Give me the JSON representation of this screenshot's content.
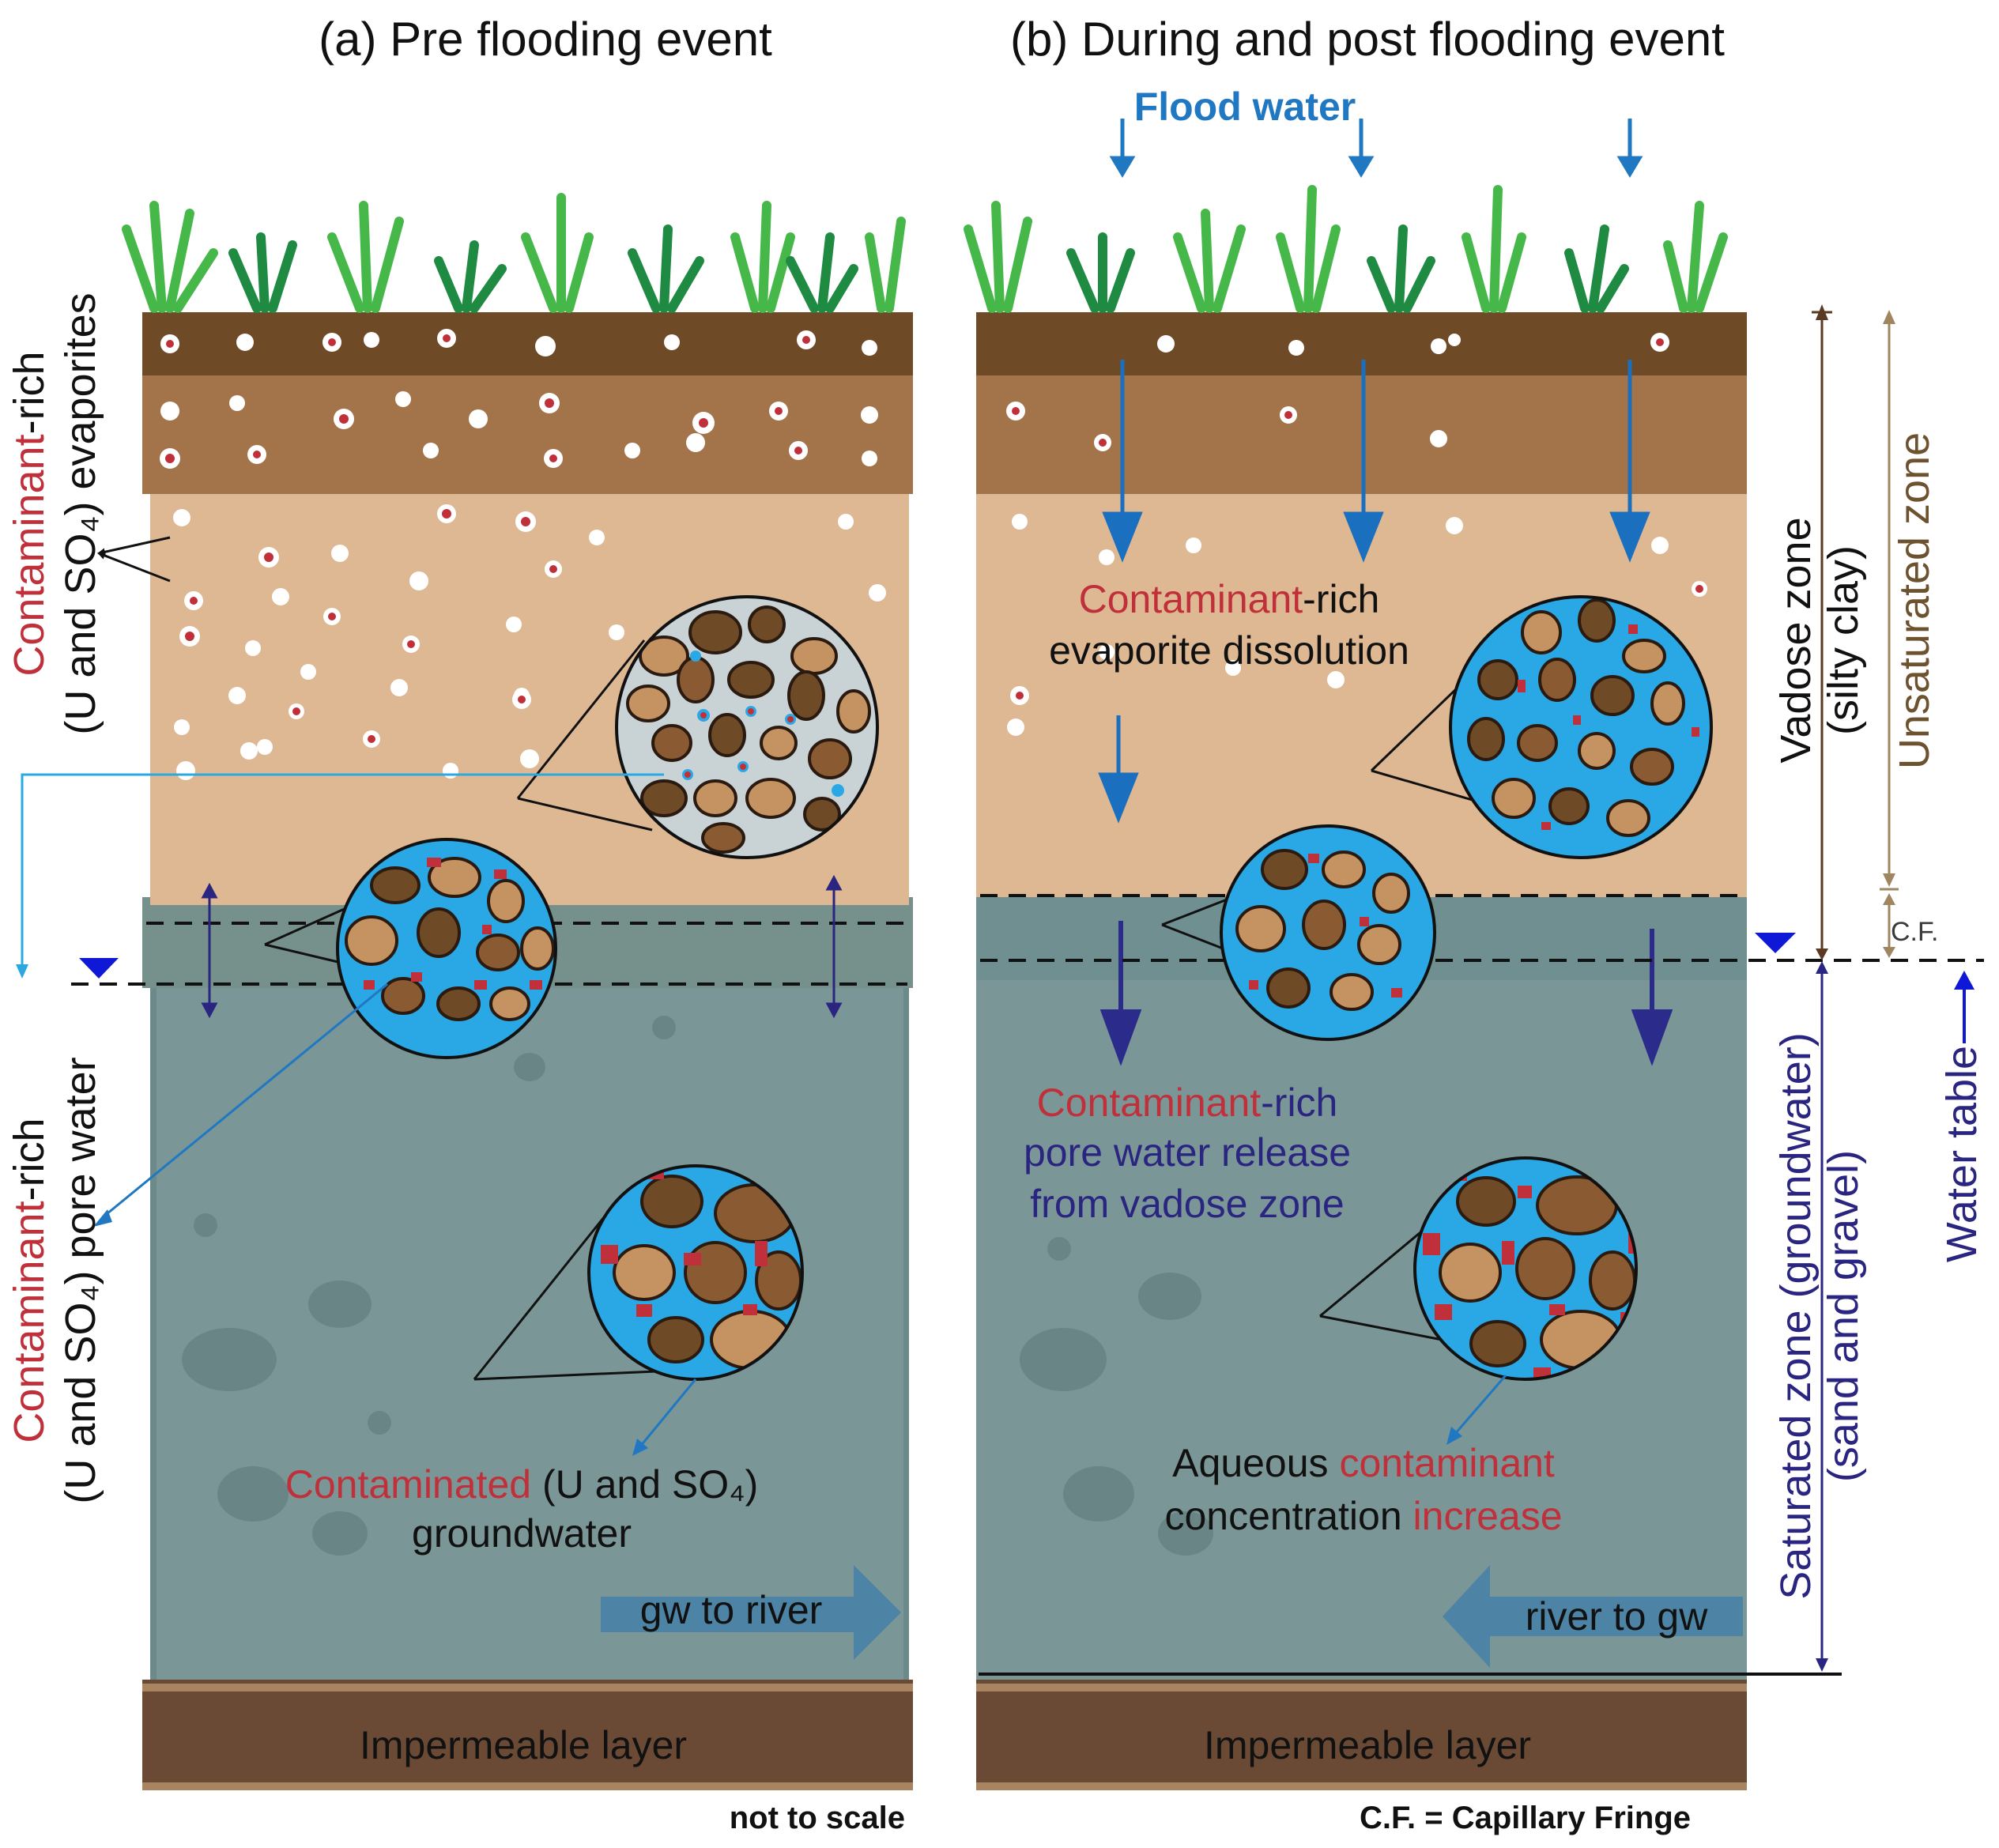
{
  "titles": {
    "left": "(a) Pre flooding event",
    "right": "(b) During and post flooding event"
  },
  "flood_water": "Flood water",
  "left_panel": {
    "side_evaporites": {
      "red": "Contaminant",
      "line1_rest": "-rich",
      "line2": "(U and SO₄) evaporites"
    },
    "side_pore_water": {
      "red": "Contaminant",
      "line1_rest": "-rich",
      "line2": "(U and SO₄) pore water"
    },
    "groundwater_label": {
      "red": "Contaminated",
      "rest": " (U and SO₄)",
      "line2": "groundwater"
    },
    "flow_arrow": "gw to river",
    "bottom_layer": "Impermeable layer",
    "footnote": "not to scale"
  },
  "right_panel": {
    "dissolution": {
      "red": "Contaminant",
      "rest": "-rich",
      "line2": "evaporite dissolution"
    },
    "release": {
      "red": "Contaminant",
      "rest": "-rich",
      "line2": "pore water release",
      "line3": "from vadose zone"
    },
    "aqueous": {
      "pre": "Aqueous ",
      "red1": "contaminant",
      "line2_pre": "concentration ",
      "red2": "increase"
    },
    "flow_arrow": "river to gw",
    "bottom_layer": "Impermeable layer",
    "footnote": "C.F. = Capillary Fringe"
  },
  "zone_labels": {
    "vadose": "Vadose zone",
    "vadose_sub": "(silty clay)",
    "unsaturated": "Unsaturated zone",
    "cf": "C.F.",
    "saturated": "Saturated zone (groundwater)",
    "saturated_sub": "(sand and gravel)",
    "water_table": "Water table"
  },
  "colors": {
    "contaminant_red": "#c0303a",
    "navy_text": "#2a2580",
    "flood_blue": "#1f78c1",
    "soil_dark": "#6e4a27",
    "soil_mid": "#a07048",
    "silty_clay": "#ddb893",
    "groundwater": "#7a9696",
    "impermeable": "#6a4a35",
    "pore_water": "#2aa8e6"
  }
}
